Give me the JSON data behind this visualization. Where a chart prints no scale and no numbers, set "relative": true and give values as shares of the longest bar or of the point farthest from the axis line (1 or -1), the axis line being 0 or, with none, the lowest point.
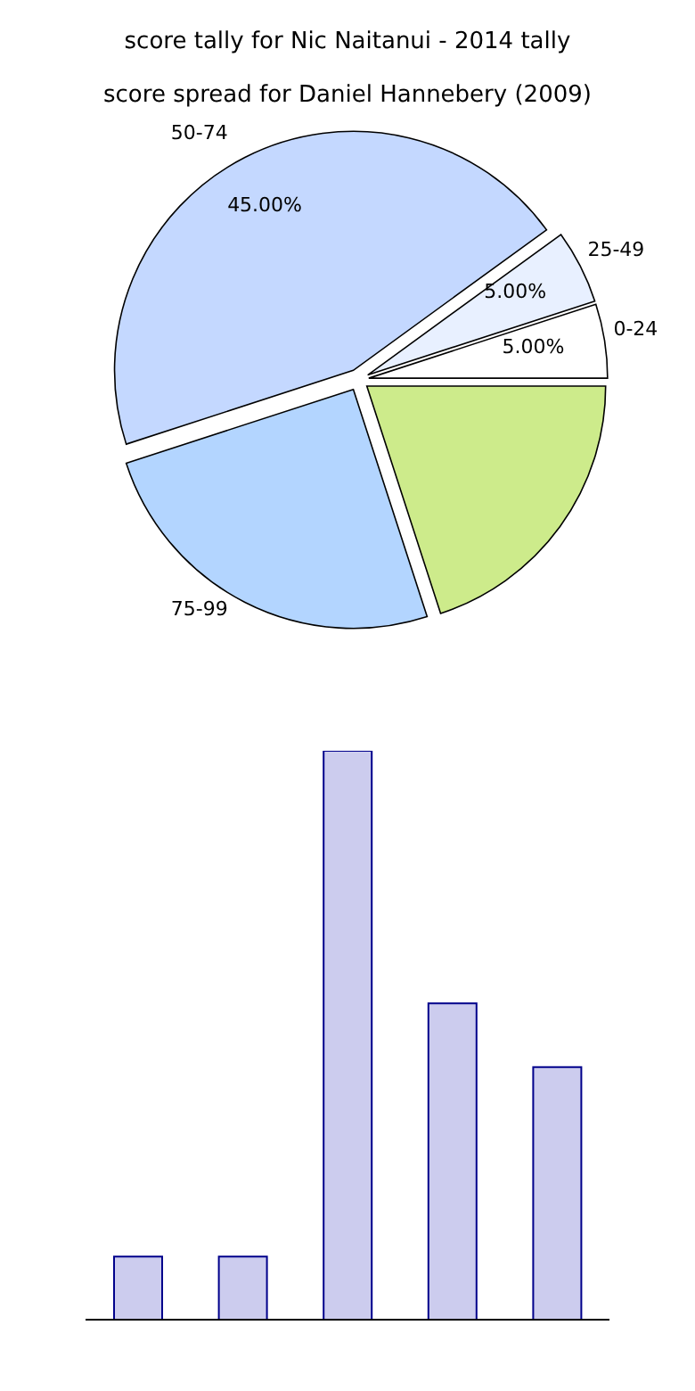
{
  "chart_data": [
    {
      "type": "pie",
      "title": "score tally for Nic Naitanui - 2014 tally",
      "subtitle": "score spread for Daniel Hannebery (2009)",
      "categories": [
        "0-24",
        "25-49",
        "50-74",
        "75-99",
        null
      ],
      "values": [
        5,
        5,
        45,
        25,
        20
      ],
      "colors": [
        "#ffffff",
        "#e8f0ff",
        "#c4d8ff",
        "#b3d5ff",
        "#cdeb8b"
      ],
      "value_labels": [
        "5.00%",
        "5.00%",
        "45.00%",
        null,
        null
      ]
    },
    {
      "type": "bar",
      "relative": true,
      "categories": [
        null,
        null,
        null,
        null,
        null
      ],
      "values": [
        0.111,
        0.111,
        1,
        0.556,
        0.444
      ],
      "color": "#ccccee"
    }
  ]
}
